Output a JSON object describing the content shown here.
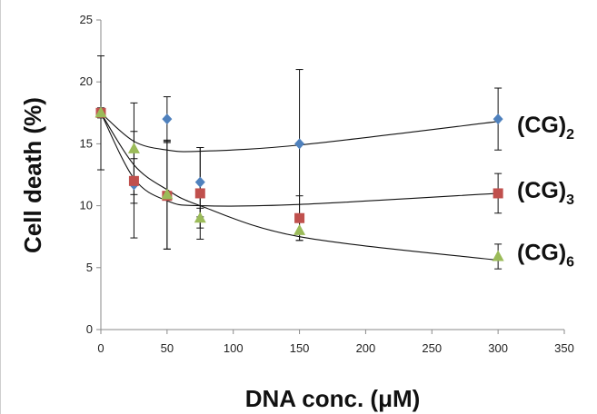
{
  "chart_data": {
    "type": "scatter",
    "title": "",
    "xlabel": "DNA conc. (μM)",
    "ylabel": "Cell death (%)",
    "xlim": [
      0,
      350
    ],
    "ylim": [
      0,
      25
    ],
    "xticks": [
      0,
      50,
      100,
      150,
      200,
      250,
      300,
      350
    ],
    "yticks": [
      0,
      5,
      10,
      15,
      20,
      25
    ],
    "grid": false,
    "legend": "none",
    "series": [
      {
        "label": [
          "(CG)",
          "2"
        ],
        "color": "#4f81bd",
        "marker": "diamond",
        "x": [
          0,
          25,
          50,
          75,
          150,
          300
        ],
        "y": [
          17.5,
          11.7,
          17.0,
          11.9,
          15.0,
          17.0
        ],
        "err": [
          4.6,
          4.3,
          1.8,
          2.8,
          6.0,
          2.5
        ],
        "fit": [
          [
            0,
            17.5
          ],
          [
            25,
            15.2
          ],
          [
            50,
            14.5
          ],
          [
            75,
            14.4
          ],
          [
            150,
            14.9
          ],
          [
            300,
            16.8
          ]
        ]
      },
      {
        "label": [
          "(CG)",
          "3"
        ],
        "color": "#c0504d",
        "marker": "square",
        "x": [
          0,
          25,
          50,
          75,
          150,
          300
        ],
        "y": [
          17.5,
          12.0,
          10.8,
          11.0,
          9.0,
          11.0
        ],
        "err": [
          0.4,
          1.8,
          4.3,
          3.7,
          1.8,
          1.6
        ],
        "fit": [
          [
            0,
            17.5
          ],
          [
            25,
            12.2
          ],
          [
            50,
            10.4
          ],
          [
            75,
            10.0
          ],
          [
            150,
            10.1
          ],
          [
            300,
            11.0
          ]
        ]
      },
      {
        "label": [
          "(CG)",
          "6"
        ],
        "color": "#9bbb59",
        "marker": "triangle",
        "x": [
          0,
          25,
          50,
          75,
          150,
          300
        ],
        "y": [
          17.5,
          14.6,
          10.9,
          9.0,
          8.0,
          5.9
        ],
        "err": [
          0.4,
          3.7,
          4.4,
          0.8,
          0.8,
          1.0
        ],
        "fit": [
          [
            0,
            17.5
          ],
          [
            25,
            13.3
          ],
          [
            50,
            11.3
          ],
          [
            75,
            10.0
          ],
          [
            150,
            7.5
          ],
          [
            300,
            5.6
          ]
        ]
      }
    ]
  }
}
